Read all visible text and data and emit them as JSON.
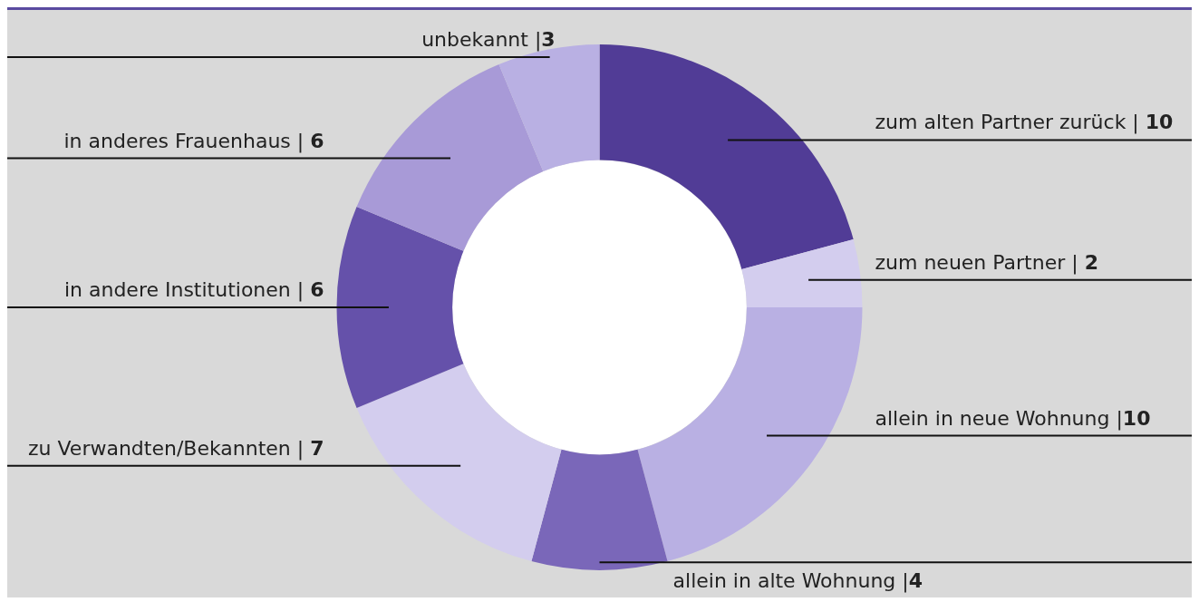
{
  "chart_data": {
    "type": "donut",
    "categories": [
      "zum alten Partner zurück",
      "zum neuen Partner",
      "allein in neue Wohnung",
      "allein in alte Wohnung",
      "zu Verwandten/Bekannten",
      "in andere Institutionen",
      "in anderes Frauenhaus",
      "unbekannt"
    ],
    "values": [
      10,
      2,
      10,
      4,
      7,
      6,
      6,
      3
    ],
    "value_labels": [
      "| 10",
      "| 2",
      "|10",
      "|4",
      "| 7",
      "| 6",
      "| 6",
      "|3"
    ],
    "colors": [
      "#513c96",
      "#d3cdee",
      "#b9b0e3",
      "#7a67b9",
      "#d3cdee",
      "#6551aa",
      "#a89ad7",
      "#b9b0e3"
    ],
    "legend": false
  }
}
